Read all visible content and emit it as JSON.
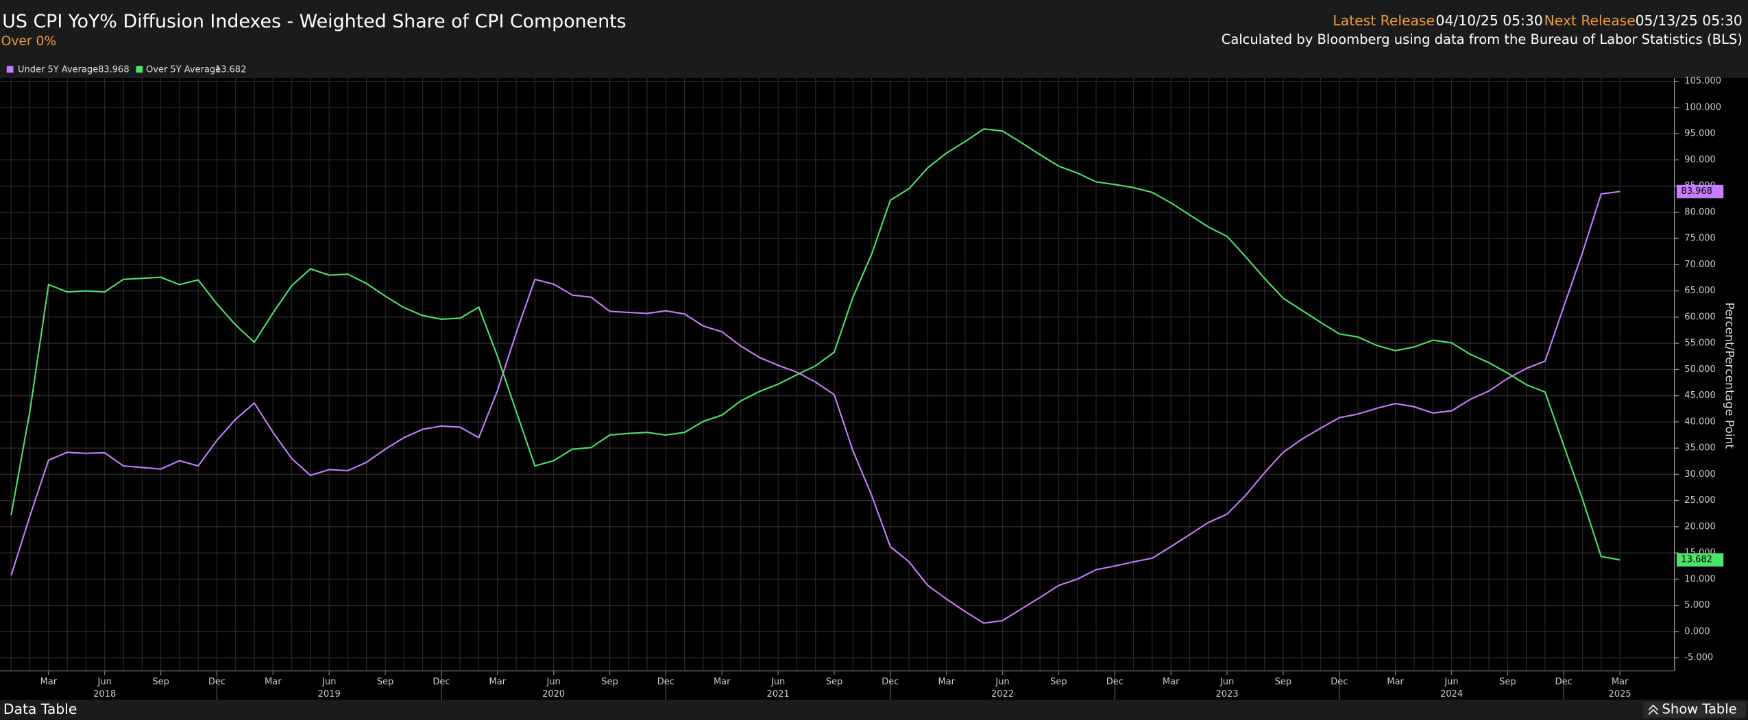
{
  "header": {
    "latest_label": "Latest Release",
    "latest_value": "04/10/25 05:30",
    "next_label": "Next Release",
    "next_value": "05/13/25 05:30",
    "source": "Calculated by Bloomberg using data from the Bureau of Labor Statistics (BLS)"
  },
  "footer": {
    "left": "Data Table",
    "button": "Show Table"
  },
  "chart_data": {
    "type": "line",
    "title": "US CPI YoY% Diffusion Indexes - Weighted Share of CPI Components",
    "subtitle": "Over 0%",
    "y_label": "Percent/Percentage Point",
    "x": [
      "2018-01",
      "2018-02",
      "2018-03",
      "2018-04",
      "2018-05",
      "2018-06",
      "2018-07",
      "2018-08",
      "2018-09",
      "2018-10",
      "2018-11",
      "2018-12",
      "2019-01",
      "2019-02",
      "2019-03",
      "2019-04",
      "2019-05",
      "2019-06",
      "2019-07",
      "2019-08",
      "2019-09",
      "2019-10",
      "2019-11",
      "2019-12",
      "2020-01",
      "2020-02",
      "2020-03",
      "2020-04",
      "2020-05",
      "2020-06",
      "2020-07",
      "2020-08",
      "2020-09",
      "2020-10",
      "2020-11",
      "2020-12",
      "2021-01",
      "2021-02",
      "2021-03",
      "2021-04",
      "2021-05",
      "2021-06",
      "2021-07",
      "2021-08",
      "2021-09",
      "2021-10",
      "2021-11",
      "2021-12",
      "2022-01",
      "2022-02",
      "2022-03",
      "2022-04",
      "2022-05",
      "2022-06",
      "2022-07",
      "2022-08",
      "2022-09",
      "2022-10",
      "2022-11",
      "2022-12",
      "2023-01",
      "2023-02",
      "2023-03",
      "2023-04",
      "2023-05",
      "2023-06",
      "2023-07",
      "2023-08",
      "2023-09",
      "2023-10",
      "2023-11",
      "2023-12",
      "2024-01",
      "2024-02",
      "2024-03",
      "2024-04",
      "2024-05",
      "2024-06",
      "2024-07",
      "2024-08",
      "2024-09",
      "2024-10",
      "2024-11",
      "2024-12",
      "2025-01",
      "2025-02",
      "2025-03"
    ],
    "series": [
      {
        "name": "Under 5Y Average",
        "color": "#c77dff",
        "values": [
          10.7,
          22,
          32.7,
          34.2,
          34.0,
          34.1,
          31.6,
          31.3,
          31.0,
          32.6,
          31.6,
          36.5,
          40.5,
          43.6,
          38,
          33,
          29.8,
          30.9,
          30.7,
          32.3,
          34.8,
          37,
          38.6,
          39.2,
          39,
          37.0,
          46,
          57,
          67.2,
          66.3,
          64.2,
          63.8,
          61.1,
          60.9,
          60.7,
          61.2,
          60.6,
          58.3,
          57.2,
          54.5,
          52.3,
          50.8,
          49.5,
          47.6,
          45.2,
          34.5,
          26,
          16.2,
          13.3,
          8.8,
          6.2,
          3.8,
          1.6,
          2.1,
          4.3,
          6.5,
          8.8,
          10,
          11.8,
          12.5,
          13.3,
          14.0,
          16.2,
          18.5,
          20.8,
          22.4,
          26,
          30.3,
          34.2,
          36.7,
          38.8,
          40.8,
          41.5,
          42.6,
          43.5,
          42.9,
          41.7,
          42.1,
          44.3,
          45.9,
          48.3,
          50.2,
          51.6,
          62,
          72.3,
          83.5,
          83.968
        ]
      },
      {
        "name": "Over 5Y Average",
        "color": "#4de36b",
        "values": [
          22.2,
          42,
          66.2,
          64.8,
          65.0,
          64.8,
          67.2,
          67.4,
          67.6,
          66.2,
          67.1,
          62.5,
          58.5,
          55.2,
          60.8,
          66,
          69.2,
          68,
          68.2,
          66.4,
          64,
          61.8,
          60.3,
          59.6,
          59.8,
          61.9,
          52.5,
          42,
          31.6,
          32.6,
          34.8,
          35.1,
          37.5,
          37.8,
          38,
          37.5,
          38,
          40.1,
          41.3,
          44,
          45.8,
          47.2,
          49,
          50.7,
          53.3,
          63.8,
          72,
          82.3,
          84.5,
          88.5,
          91.3,
          93.5,
          95.9,
          95.5,
          93.3,
          91,
          88.8,
          87.5,
          85.8,
          85.3,
          84.7,
          83.8,
          81.8,
          79.5,
          77.2,
          75.4,
          71.5,
          67.4,
          63.6,
          61.3,
          59,
          56.8,
          56.2,
          54.6,
          53.6,
          54.3,
          55.6,
          55.1,
          52.9,
          51.3,
          49.3,
          47.1,
          45.7,
          35.5,
          25.3,
          14.3,
          13.682
        ]
      }
    ],
    "ylim": [
      -7.5,
      105.6
    ],
    "yticks": [
      {
        "value": -5,
        "label": "-5.000"
      },
      {
        "value": 0,
        "label": "0.000"
      },
      {
        "value": 5,
        "label": "5.000"
      },
      {
        "value": 10,
        "label": "10.000"
      },
      {
        "value": 15,
        "label": "15.000"
      },
      {
        "value": 20,
        "label": "20.000"
      },
      {
        "value": 25,
        "label": "25.000"
      },
      {
        "value": 30,
        "label": "30.000"
      },
      {
        "value": 35,
        "label": "35.000"
      },
      {
        "value": 40,
        "label": "40.000"
      },
      {
        "value": 45,
        "label": "45.000"
      },
      {
        "value": 50,
        "label": "50.000"
      },
      {
        "value": 55,
        "label": "55.000"
      },
      {
        "value": 60,
        "label": "60.000"
      },
      {
        "value": 65,
        "label": "65.000"
      },
      {
        "value": 70,
        "label": "70.000"
      },
      {
        "value": 75,
        "label": "75.000"
      },
      {
        "value": 80,
        "label": "80.000"
      },
      {
        "value": 85,
        "label": "85.000"
      },
      {
        "value": 90,
        "label": "90.000"
      },
      {
        "value": 95,
        "label": "95.000"
      },
      {
        "value": 100,
        "label": "100.000"
      },
      {
        "value": 105,
        "label": "105.000"
      }
    ],
    "xticks": [
      {
        "value": "2018-03",
        "label": "Mar"
      },
      {
        "value": "2018-06",
        "label": "Jun"
      },
      {
        "value": "2018-09",
        "label": "Sep"
      },
      {
        "value": "2018-12",
        "label": "Dec"
      },
      {
        "value": "2019-03",
        "label": "Mar"
      },
      {
        "value": "2019-06",
        "label": "Jun"
      },
      {
        "value": "2019-09",
        "label": "Sep"
      },
      {
        "value": "2019-12",
        "label": "Dec"
      },
      {
        "value": "2020-03",
        "label": "Mar"
      },
      {
        "value": "2020-06",
        "label": "Jun"
      },
      {
        "value": "2020-09",
        "label": "Sep"
      },
      {
        "value": "2020-12",
        "label": "Dec"
      },
      {
        "value": "2021-03",
        "label": "Mar"
      },
      {
        "value": "2021-06",
        "label": "Jun"
      },
      {
        "value": "2021-09",
        "label": "Sep"
      },
      {
        "value": "2021-12",
        "label": "Dec"
      },
      {
        "value": "2022-03",
        "label": "Mar"
      },
      {
        "value": "2022-06",
        "label": "Jun"
      },
      {
        "value": "2022-09",
        "label": "Sep"
      },
      {
        "value": "2022-12",
        "label": "Dec"
      },
      {
        "value": "2023-03",
        "label": "Mar"
      },
      {
        "value": "2023-06",
        "label": "Jun"
      },
      {
        "value": "2023-09",
        "label": "Sep"
      },
      {
        "value": "2023-12",
        "label": "Dec"
      },
      {
        "value": "2024-03",
        "label": "Mar"
      },
      {
        "value": "2024-06",
        "label": "Jun"
      },
      {
        "value": "2024-09",
        "label": "Sep"
      },
      {
        "value": "2024-12",
        "label": "Dec"
      },
      {
        "value": "2025-03",
        "label": "Mar"
      }
    ],
    "xtick_groups": [
      {
        "value": "2018-06",
        "label": "2018"
      },
      {
        "value": "2019-06",
        "label": "2019"
      },
      {
        "value": "2020-06",
        "label": "2020"
      },
      {
        "value": "2021-06",
        "label": "2021"
      },
      {
        "value": "2022-06",
        "label": "2022"
      },
      {
        "value": "2023-06",
        "label": "2023"
      },
      {
        "value": "2024-06",
        "label": "2024"
      },
      {
        "value": "2025-03",
        "label": "2025"
      }
    ],
    "grid": true,
    "legend": "top-left"
  }
}
